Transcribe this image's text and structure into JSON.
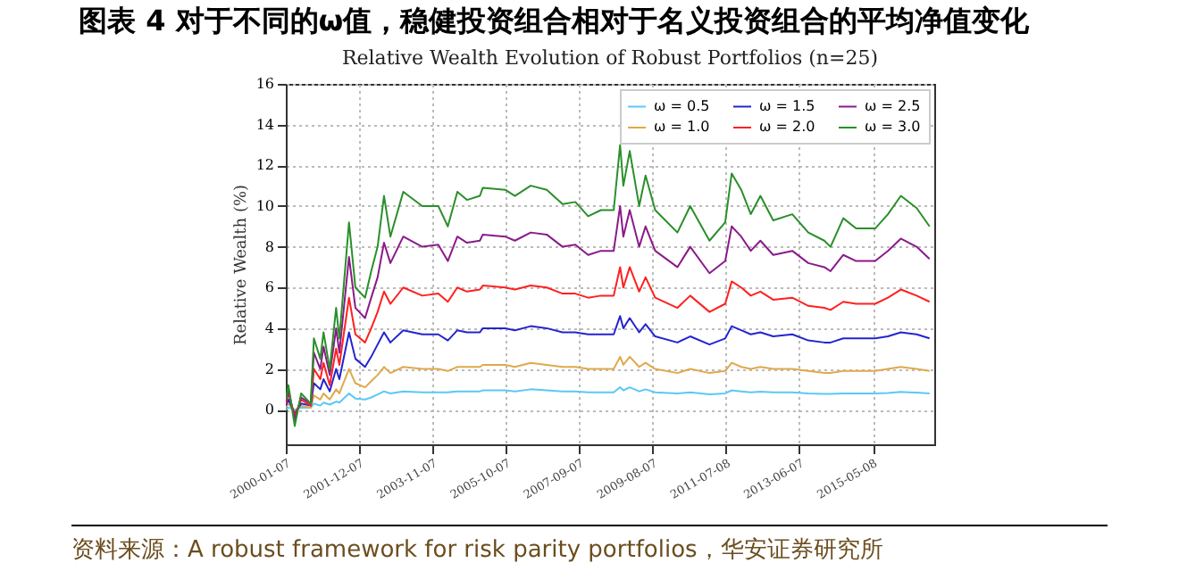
{
  "chart_data": {
    "type": "line",
    "title": "图表 4 对于不同的ω值，稳健投资组合相对于名义投资组合的平均净值变化",
    "subtitle": "Relative Wealth Evolution of Robust Portfolios (n=25)",
    "ylabel": "Relative Wealth (%)",
    "annotations": [
      "资料来源：A robust framework for risk parity portfolios，华安证券研究所"
    ],
    "x": [
      "2000-01-07",
      "2000-02",
      "2000-04",
      "2000-06",
      "2000-09",
      "2000-10",
      "2000-12",
      "2001-01",
      "2001-03",
      "2001-05",
      "2001-06",
      "2001-09",
      "2001-11",
      "2002-02",
      "2002-04",
      "2002-06",
      "2002-08",
      "2002-10",
      "2003-02",
      "2003-08",
      "2004-01",
      "2004-04",
      "2004-07",
      "2004-10",
      "2005-02",
      "2005-03",
      "2005-10",
      "2006-01",
      "2006-06",
      "2006-11",
      "2007-04",
      "2007-08",
      "2007-12",
      "2008-04",
      "2008-08",
      "2008-10",
      "2008-11",
      "2009-01",
      "2009-04",
      "2009-06",
      "2009-09",
      "2010-04",
      "2010-08",
      "2011-02",
      "2011-07",
      "2011-09",
      "2011-12",
      "2012-03",
      "2012-06",
      "2012-10",
      "2013-04",
      "2013-09",
      "2014-02",
      "2014-04",
      "2014-08",
      "2014-12",
      "2015-06",
      "2015-10",
      "2016-02",
      "2016-07",
      "2016-11"
    ],
    "series": [
      {
        "name": "ω = 0.5",
        "color": "#5bc8f5",
        "values": [
          0,
          0.1,
          0,
          0.1,
          0.1,
          0.3,
          0.2,
          0.35,
          0.25,
          0.4,
          0.35,
          0.8,
          0.55,
          0.5,
          0.6,
          0.75,
          0.9,
          0.8,
          0.9,
          0.85,
          0.85,
          0.85,
          0.9,
          0.9,
          0.9,
          0.95,
          0.95,
          0.9,
          1,
          0.95,
          0.9,
          0.9,
          0.85,
          0.85,
          0.85,
          1.1,
          0.95,
          1.1,
          0.9,
          1,
          0.85,
          0.8,
          0.85,
          0.75,
          0.8,
          0.95,
          0.9,
          0.85,
          0.88,
          0.85,
          0.85,
          0.8,
          0.78,
          0.78,
          0.8,
          0.8,
          0.8,
          0.82,
          0.87,
          0.84,
          0.8
        ]
      },
      {
        "name": "ω = 1.0",
        "color": "#e0a94a",
        "values": [
          0.1,
          0.3,
          -0.1,
          0.2,
          0.1,
          0.7,
          0.5,
          0.8,
          0.5,
          1,
          0.8,
          2,
          1.3,
          1.1,
          1.4,
          1.7,
          2.1,
          1.8,
          2.1,
          2,
          2,
          1.9,
          2.1,
          2.1,
          2.1,
          2.2,
          2.2,
          2.1,
          2.3,
          2.2,
          2.1,
          2.1,
          2,
          2,
          2,
          2.6,
          2.2,
          2.6,
          2.1,
          2.3,
          2,
          1.8,
          2,
          1.8,
          1.9,
          2.3,
          2.1,
          2,
          2.1,
          2,
          2,
          1.9,
          1.8,
          1.8,
          1.9,
          1.9,
          1.9,
          2,
          2.1,
          2,
          1.9
        ]
      },
      {
        "name": "ω = 1.5",
        "color": "#2424d0",
        "values": [
          0.2,
          0.5,
          -0.2,
          0.3,
          0.2,
          1.3,
          1,
          1.5,
          0.9,
          2,
          1.5,
          3.8,
          2.5,
          2.1,
          2.6,
          3.2,
          3.8,
          3.3,
          3.9,
          3.7,
          3.7,
          3.4,
          3.9,
          3.8,
          3.8,
          4,
          4,
          3.9,
          4.1,
          4,
          3.8,
          3.8,
          3.7,
          3.7,
          3.7,
          4.6,
          4,
          4.5,
          3.8,
          4.2,
          3.6,
          3.3,
          3.6,
          3.2,
          3.5,
          4.1,
          3.9,
          3.7,
          3.8,
          3.6,
          3.7,
          3.4,
          3.3,
          3.3,
          3.5,
          3.5,
          3.5,
          3.6,
          3.8,
          3.7,
          3.5
        ]
      },
      {
        "name": "ω = 2.0",
        "color": "#ff2020",
        "values": [
          0.3,
          0.8,
          -0.3,
          0.5,
          0.2,
          2,
          1.5,
          2.3,
          1.2,
          3,
          2.2,
          5.5,
          3.7,
          3.3,
          4,
          4.8,
          5.8,
          5.2,
          6,
          5.6,
          5.7,
          5.3,
          6,
          5.8,
          5.9,
          6.1,
          6,
          5.9,
          6.1,
          6,
          5.7,
          5.7,
          5.5,
          5.6,
          5.6,
          7,
          6,
          7,
          5.8,
          6.5,
          5.5,
          5,
          5.6,
          4.8,
          5.2,
          6.3,
          6,
          5.6,
          5.8,
          5.4,
          5.5,
          5.1,
          5,
          4.9,
          5.3,
          5.2,
          5.2,
          5.5,
          5.9,
          5.6,
          5.3
        ]
      },
      {
        "name": "ω = 2.5",
        "color": "#8a1a8a",
        "values": [
          0.4,
          1,
          -0.5,
          0.6,
          0.3,
          2.8,
          2,
          3.1,
          1.7,
          4,
          2.8,
          7.5,
          5,
          4.5,
          5.5,
          6.5,
          8.2,
          7.2,
          8.5,
          8,
          8.1,
          7.3,
          8.5,
          8.2,
          8.3,
          8.6,
          8.5,
          8.3,
          8.7,
          8.6,
          8,
          8.1,
          7.6,
          7.8,
          7.8,
          10,
          8.5,
          9.8,
          8,
          9,
          7.8,
          7,
          8,
          6.7,
          7.3,
          9,
          8.5,
          7.8,
          8.3,
          7.6,
          7.8,
          7.2,
          7,
          6.8,
          7.6,
          7.3,
          7.3,
          7.8,
          8.4,
          8,
          7.4
        ]
      },
      {
        "name": "ω = 3.0",
        "color": "#2a8f2a",
        "values": [
          0.5,
          1.2,
          -0.8,
          0.8,
          0.3,
          3.5,
          2.5,
          3.8,
          2,
          5,
          3.5,
          9.2,
          6,
          5.5,
          6.8,
          8,
          10.5,
          8.5,
          10.7,
          10,
          10,
          9,
          10.7,
          10.3,
          10.5,
          10.9,
          10.8,
          10.5,
          11,
          10.8,
          10.1,
          10.2,
          9.5,
          9.8,
          9.8,
          13,
          11,
          12.7,
          10,
          11.5,
          9.8,
          8.7,
          10,
          8.3,
          9.2,
          11.6,
          10.8,
          9.6,
          10.5,
          9.3,
          9.6,
          8.7,
          8.3,
          8,
          9.4,
          8.9,
          8.9,
          9.6,
          10.5,
          9.9,
          9
        ]
      }
    ],
    "xlim": [
      "2000-01-07",
      "2016-12-16"
    ],
    "xticks": [
      "2000-01-07",
      "2001-12-07",
      "2003-11-07",
      "2005-10-07",
      "2007-09-07",
      "2009-08-07",
      "2011-07-08",
      "2013-06-07",
      "2015-05-08"
    ],
    "ylim": [
      -1.7,
      16
    ],
    "yticks": [
      0,
      2,
      4,
      6,
      8,
      10,
      12,
      14,
      16
    ],
    "grid": true,
    "legend": "top right"
  }
}
